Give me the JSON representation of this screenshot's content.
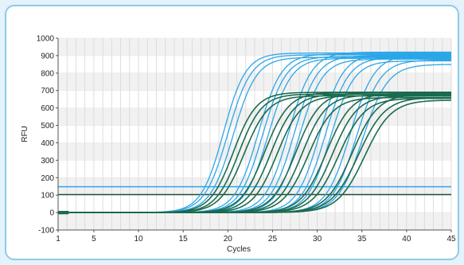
{
  "colors": {
    "frame_background": "#e3f2fb",
    "panel_border": "#8ccbe8",
    "blue_series": "#2ba6e8",
    "green_series": "#1b6b4e",
    "blue_threshold": "#2ba6e8",
    "green_threshold": "#1f4f3c",
    "grid": "#d6d6d6",
    "band": "#f1f1f1"
  },
  "chart_data": {
    "type": "line",
    "title": "",
    "xlabel": "Cycles",
    "ylabel": "RFU",
    "xlim": [
      1,
      45
    ],
    "ylim": [
      -100,
      1000
    ],
    "x_ticks": [
      1,
      5,
      10,
      15,
      20,
      25,
      30,
      35,
      40,
      45
    ],
    "y_ticks": [
      -100,
      0,
      100,
      200,
      300,
      400,
      500,
      600,
      700,
      800,
      900,
      1000
    ],
    "grid": "vertical lines at every cycle; alternating horizontal bands",
    "legend": "none",
    "thresholds": [
      {
        "group": "blue",
        "y": 148
      },
      {
        "group": "green",
        "y": 103
      }
    ],
    "curve_model": "sigmoid: y = plateau / (1 + exp(-(x - midpoint) / slope))",
    "series": [
      {
        "group": "blue",
        "plateau": 915,
        "midpoint": 19.5,
        "slope": 1.25
      },
      {
        "group": "blue",
        "plateau": 905,
        "midpoint": 20.0,
        "slope": 1.3
      },
      {
        "group": "blue",
        "plateau": 890,
        "midpoint": 20.6,
        "slope": 1.3
      },
      {
        "group": "blue",
        "plateau": 910,
        "midpoint": 23.4,
        "slope": 1.3
      },
      {
        "group": "blue",
        "plateau": 895,
        "midpoint": 23.9,
        "slope": 1.3
      },
      {
        "group": "blue",
        "plateau": 885,
        "midpoint": 24.5,
        "slope": 1.3
      },
      {
        "group": "blue",
        "plateau": 920,
        "midpoint": 26.8,
        "slope": 1.3
      },
      {
        "group": "blue",
        "plateau": 900,
        "midpoint": 27.4,
        "slope": 1.3
      },
      {
        "group": "blue",
        "plateau": 880,
        "midpoint": 28.0,
        "slope": 1.3
      },
      {
        "group": "blue",
        "plateau": 910,
        "midpoint": 30.3,
        "slope": 1.3
      },
      {
        "group": "blue",
        "plateau": 890,
        "midpoint": 30.9,
        "slope": 1.3
      },
      {
        "group": "blue",
        "plateau": 870,
        "midpoint": 31.5,
        "slope": 1.3
      },
      {
        "group": "blue",
        "plateau": 905,
        "midpoint": 33.7,
        "slope": 1.35
      },
      {
        "group": "blue",
        "plateau": 875,
        "midpoint": 34.4,
        "slope": 1.35
      },
      {
        "group": "blue",
        "plateau": 850,
        "midpoint": 35.1,
        "slope": 1.4
      },
      {
        "group": "green",
        "plateau": 690,
        "midpoint": 20.6,
        "slope": 1.3
      },
      {
        "group": "green",
        "plateau": 680,
        "midpoint": 21.2,
        "slope": 1.3
      },
      {
        "group": "green",
        "plateau": 670,
        "midpoint": 21.8,
        "slope": 1.35
      },
      {
        "group": "green",
        "plateau": 690,
        "midpoint": 24.1,
        "slope": 1.35
      },
      {
        "group": "green",
        "plateau": 680,
        "midpoint": 24.8,
        "slope": 1.35
      },
      {
        "group": "green",
        "plateau": 670,
        "midpoint": 25.5,
        "slope": 1.35
      },
      {
        "group": "green",
        "plateau": 690,
        "midpoint": 27.6,
        "slope": 1.35
      },
      {
        "group": "green",
        "plateau": 675,
        "midpoint": 28.3,
        "slope": 1.35
      },
      {
        "group": "green",
        "plateau": 660,
        "midpoint": 29.0,
        "slope": 1.4
      },
      {
        "group": "green",
        "plateau": 685,
        "midpoint": 31.0,
        "slope": 1.4
      },
      {
        "group": "green",
        "plateau": 670,
        "midpoint": 31.7,
        "slope": 1.4
      },
      {
        "group": "green",
        "plateau": 655,
        "midpoint": 32.4,
        "slope": 1.45
      },
      {
        "group": "green",
        "plateau": 680,
        "midpoint": 33.9,
        "slope": 1.45
      },
      {
        "group": "green",
        "plateau": 660,
        "midpoint": 34.6,
        "slope": 1.5
      },
      {
        "group": "green",
        "plateau": 645,
        "midpoint": 35.3,
        "slope": 1.5
      }
    ]
  }
}
